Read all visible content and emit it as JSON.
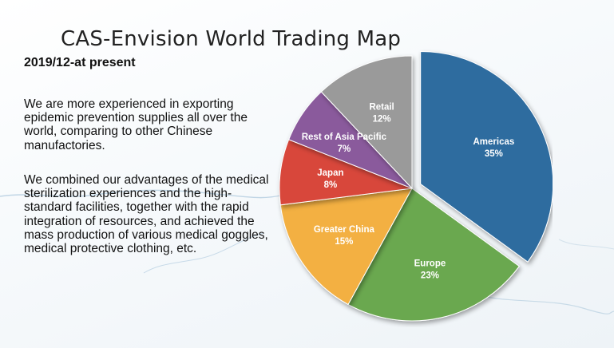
{
  "page": {
    "title": "CAS-Envision World Trading Map",
    "subtitle": "2019/12-at present",
    "paragraph1": "We are more experienced in exporting epidemic prevention supplies all over the world, comparing to other Chinese manufactories.",
    "paragraph2": "We combined our advantages of the medical sterilization experiences and the high-standard facilities, together with the rapid integration of resources, and achieved the mass production of various medical goggles, medical protective clothing, etc."
  },
  "chart_data": {
    "type": "pie",
    "title": "",
    "slices": [
      {
        "name": "Americas",
        "value": 35,
        "label": "35%",
        "color": "#2f6c9f"
      },
      {
        "name": "Europe",
        "value": 23,
        "label": "23%",
        "color": "#6aa84f"
      },
      {
        "name": "Greater China",
        "value": 15,
        "label": "15%",
        "color": "#f3b043"
      },
      {
        "name": "Japan",
        "value": 8,
        "label": "8%",
        "color": "#d8473b"
      },
      {
        "name": "Rest of Asia Pacific",
        "value": 7,
        "label": "7%",
        "color": "#8a5a9c"
      },
      {
        "name": "Retail",
        "value": 12,
        "label": "12%",
        "color": "#9a9a9a"
      }
    ],
    "exploded_slice": "Americas",
    "start": "12 o'clock",
    "direction": "clockwise"
  }
}
